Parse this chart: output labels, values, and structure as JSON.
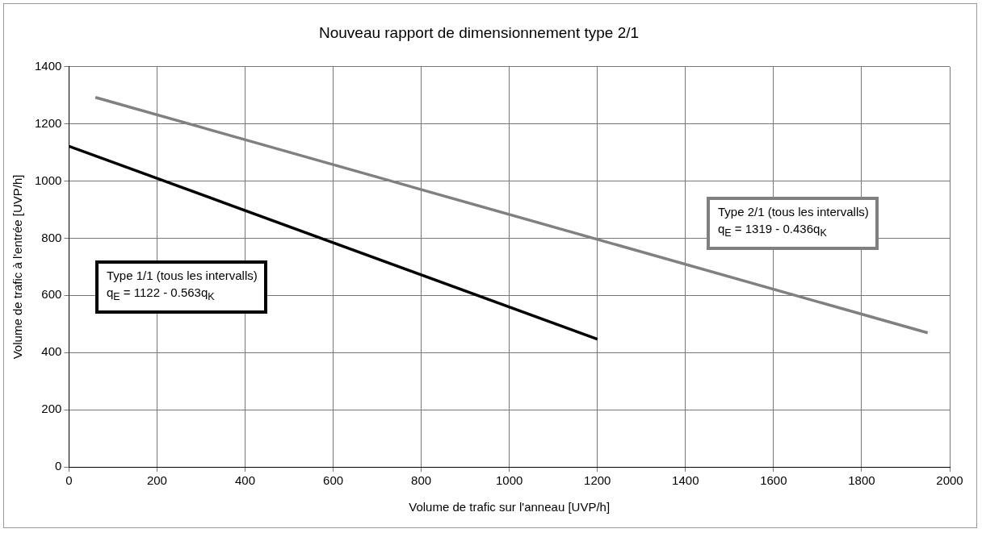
{
  "chart_data": {
    "type": "line",
    "title": "Nouveau rapport de dimensionnement type 2/1",
    "xlabel": "Volume de trafic sur l'anneau [UVP/h]",
    "ylabel": "Volume de trafic à l'entrée [UVP/h]",
    "series": [
      {
        "color": "#000000",
        "x": [
          0,
          1200
        ],
        "values": [
          1122,
          447
        ]
      },
      {
        "color": "#808080",
        "x": [
          60,
          1950
        ],
        "values": [
          1293,
          469
        ]
      }
    ],
    "annotations": [
      "Type 1/1 (tous les intervalls)\nq$_{E}$ = 1122 - 0.563q$_{K}$",
      "Type 2/1 (tous les intervalls)\nq$_{E}$ = 1319 - 0.436q$_{K}$"
    ],
    "xlim": [
      0,
      2000
    ],
    "xticks": [
      0,
      200,
      400,
      600,
      800,
      1000,
      1200,
      1400,
      1600,
      1800,
      2000
    ],
    "ylim": [
      0,
      1400
    ],
    "yticks": [
      0,
      200,
      400,
      600,
      800,
      1000,
      1200,
      1400
    ],
    "grid": true,
    "legend": false,
    "marker": "none",
    "line_style": "solid"
  }
}
